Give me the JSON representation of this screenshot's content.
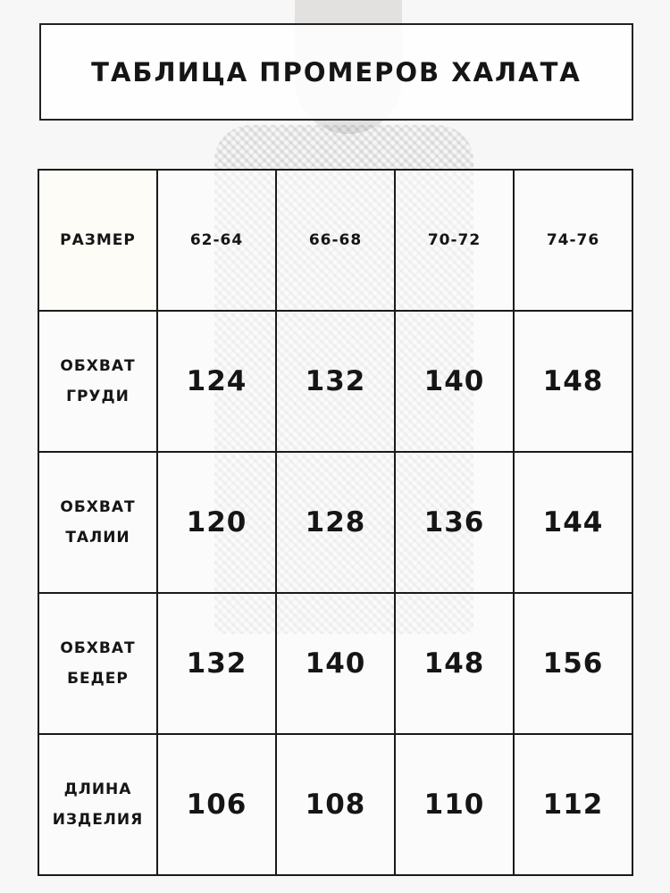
{
  "title": "ТАБЛИЦА ПРОМЕРОВ ХАЛАТА",
  "header": {
    "label": "РАЗМЕР",
    "sizes": [
      "62-64",
      "66-68",
      "70-72",
      "74-76"
    ]
  },
  "rows": [
    {
      "label1": "ОБХВАТ",
      "label2": "ГРУДИ",
      "values": [
        "124",
        "132",
        "140",
        "148"
      ]
    },
    {
      "label1": "ОБХВАТ",
      "label2": "ТАЛИИ",
      "values": [
        "120",
        "128",
        "136",
        "144"
      ]
    },
    {
      "label1": "ОБХВАТ",
      "label2": "БЕДЕР",
      "values": [
        "132",
        "140",
        "148",
        "156"
      ]
    },
    {
      "label1": "ДЛИНА",
      "label2": "ИЗДЕЛИЯ",
      "values": [
        "106",
        "108",
        "110",
        "112"
      ]
    }
  ]
}
